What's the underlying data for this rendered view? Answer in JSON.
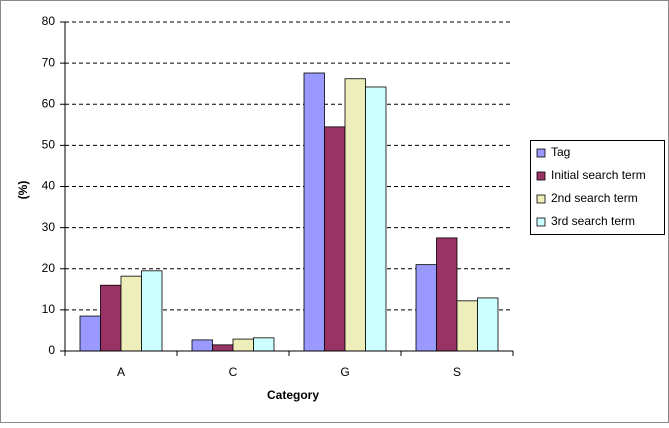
{
  "chart_data": {
    "type": "bar",
    "x_label": "Category",
    "y_label": "(%)",
    "categories": [
      "A",
      "C",
      "G",
      "S"
    ],
    "series": [
      {
        "name": "Tag",
        "color": "#9999ff",
        "values": [
          8.5,
          2.7,
          67.6,
          21
        ]
      },
      {
        "name": "Initial search term",
        "color": "#993366",
        "values": [
          16,
          1.5,
          54.5,
          27.5
        ]
      },
      {
        "name": "2nd search term",
        "color": "#eeeebb",
        "values": [
          18.2,
          2.9,
          66.2,
          12.2
        ]
      },
      {
        "name": "3rd search term",
        "color": "#ccffff",
        "values": [
          19.5,
          3.2,
          64.2,
          12.9
        ]
      }
    ],
    "ylim": [
      0,
      80
    ],
    "yticks": [
      0,
      10,
      20,
      30,
      40,
      50,
      60,
      70,
      80
    ],
    "grid": true,
    "legend": "right"
  }
}
